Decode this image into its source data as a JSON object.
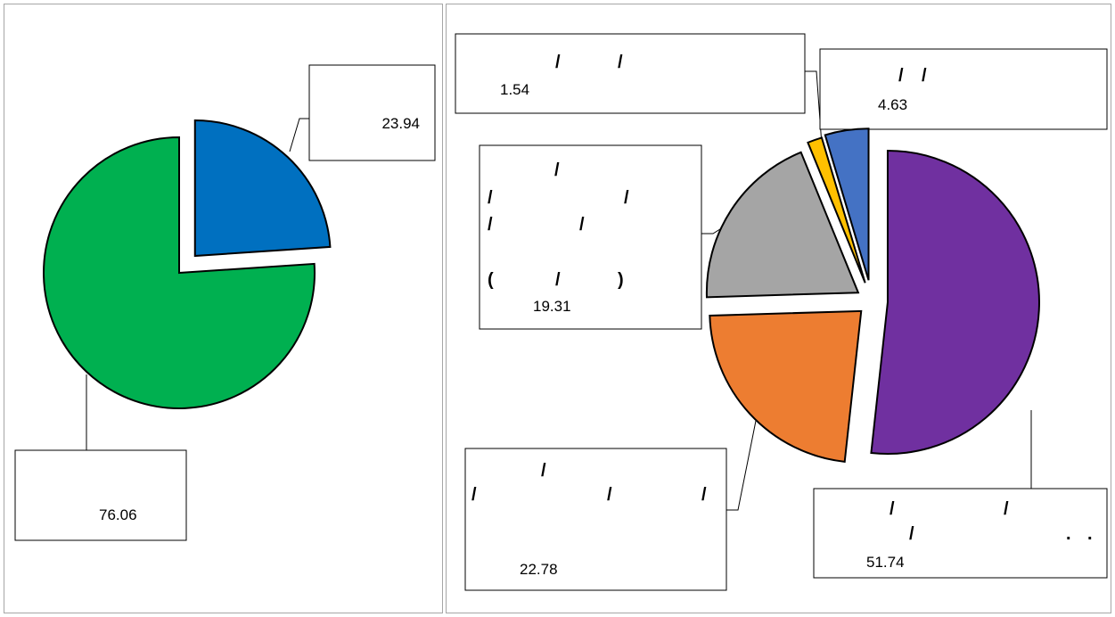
{
  "chart_data": [
    {
      "type": "pie",
      "title": "",
      "exploded": true,
      "slices": [
        {
          "value": 23.94,
          "label": "23.94",
          "color": "#0070C0"
        },
        {
          "value": 76.06,
          "label": "76.06",
          "color": "#00B050"
        }
      ]
    },
    {
      "type": "pie",
      "title": "",
      "exploded": true,
      "slices": [
        {
          "value": 51.74,
          "label": "51.74",
          "color": "#7030A0"
        },
        {
          "value": 22.78,
          "label": "22.78",
          "color": "#ED7D31"
        },
        {
          "value": 19.31,
          "label": "19.31",
          "color": "#A5A5A5"
        },
        {
          "value": 1.54,
          "label": "1.54",
          "color": "#FFC000"
        },
        {
          "value": 4.63,
          "label": "4.63",
          "color": "#4472C4"
        }
      ]
    }
  ]
}
